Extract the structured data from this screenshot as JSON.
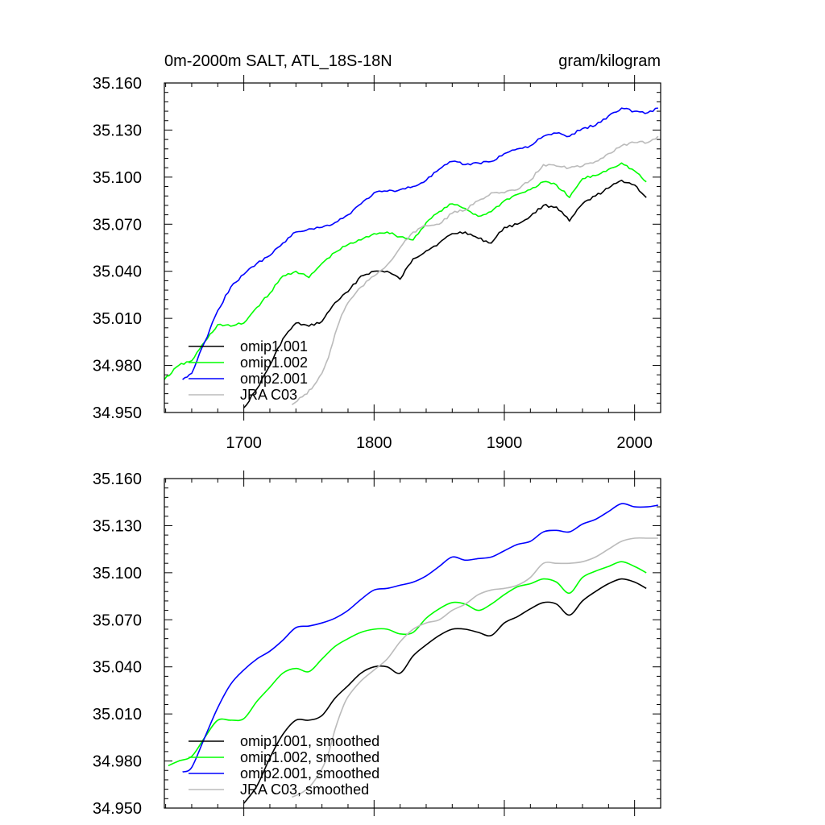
{
  "chart_data": [
    {
      "type": "line",
      "title_left": "0m-2000m SALT, ATL_18S-18N",
      "title_right": "gram/kilogram",
      "xlim": [
        1639,
        2020
      ],
      "ylim": [
        34.95,
        35.16
      ],
      "xticks": [
        1700,
        1800,
        1900,
        2000
      ],
      "xtick_labels": [
        "1700",
        "1800",
        "1900",
        "2000"
      ],
      "show_xtick_labels": true,
      "yticks": [
        34.95,
        34.98,
        35.01,
        35.04,
        35.07,
        35.1,
        35.13,
        35.16
      ],
      "ytick_labels": [
        "34.950",
        "34.980",
        "35.010",
        "35.040",
        "35.070",
        "35.100",
        "35.130",
        "35.160"
      ],
      "smooth": false,
      "series": [
        {
          "name": "omip1.001",
          "color": "#000000",
          "x": [
            1700,
            1710,
            1720,
            1730,
            1740,
            1750,
            1760,
            1770,
            1780,
            1790,
            1800,
            1810,
            1820,
            1830,
            1840,
            1850,
            1860,
            1870,
            1880,
            1890,
            1900,
            1910,
            1920,
            1930,
            1940,
            1950,
            1960,
            1970,
            1980,
            1990,
            2000,
            2009
          ],
          "y": [
            34.953,
            34.965,
            34.98,
            34.997,
            35.007,
            35.005,
            35.008,
            35.02,
            35.027,
            35.037,
            35.04,
            35.04,
            35.035,
            35.048,
            35.053,
            35.058,
            35.064,
            35.065,
            35.061,
            35.058,
            35.068,
            35.07,
            35.075,
            35.082,
            35.081,
            35.072,
            35.083,
            35.088,
            35.093,
            35.098,
            35.095,
            35.087
          ]
        },
        {
          "name": "omip1.002",
          "color": "#00ff00",
          "x": [
            1639,
            1650,
            1660,
            1670,
            1680,
            1690,
            1700,
            1710,
            1720,
            1730,
            1740,
            1750,
            1760,
            1770,
            1780,
            1790,
            1800,
            1810,
            1820,
            1830,
            1840,
            1850,
            1860,
            1870,
            1880,
            1890,
            1900,
            1910,
            1920,
            1930,
            1940,
            1950,
            1960,
            1970,
            1980,
            1990,
            2000,
            2009
          ],
          "y": [
            34.971,
            34.98,
            34.983,
            34.995,
            35.006,
            35.005,
            35.007,
            35.017,
            35.026,
            35.037,
            35.04,
            35.036,
            35.045,
            35.052,
            35.057,
            35.06,
            35.064,
            35.065,
            35.062,
            35.06,
            35.071,
            35.078,
            35.083,
            35.08,
            35.075,
            35.078,
            35.085,
            35.089,
            35.092,
            35.097,
            35.095,
            35.087,
            35.099,
            35.101,
            35.105,
            35.109,
            35.104,
            35.097
          ]
        },
        {
          "name": "omip2.001",
          "color": "#0000ff",
          "x": [
            1653,
            1660,
            1670,
            1680,
            1690,
            1700,
            1710,
            1720,
            1730,
            1740,
            1750,
            1760,
            1770,
            1780,
            1790,
            1800,
            1810,
            1820,
            1830,
            1840,
            1850,
            1860,
            1870,
            1880,
            1890,
            1900,
            1910,
            1920,
            1930,
            1940,
            1950,
            1960,
            1970,
            1980,
            1990,
            2000,
            2010,
            2018
          ],
          "y": [
            34.971,
            34.975,
            34.995,
            35.015,
            35.03,
            35.038,
            35.045,
            35.05,
            35.058,
            35.065,
            35.067,
            35.068,
            35.071,
            35.076,
            35.083,
            35.09,
            35.091,
            35.092,
            35.094,
            35.098,
            35.105,
            35.11,
            35.108,
            35.109,
            35.11,
            35.115,
            35.118,
            35.12,
            35.126,
            35.128,
            35.126,
            35.131,
            35.133,
            35.139,
            35.144,
            35.142,
            35.141,
            35.144
          ]
        },
        {
          "name": "JRA C03",
          "color": "#bbbbbb",
          "x": [
            1737,
            1745,
            1752,
            1760,
            1765,
            1770,
            1775,
            1780,
            1790,
            1800,
            1810,
            1820,
            1830,
            1840,
            1850,
            1860,
            1870,
            1880,
            1890,
            1900,
            1910,
            1920,
            1930,
            1940,
            1950,
            1960,
            1970,
            1980,
            1990,
            2000,
            2010,
            2018
          ],
          "y": [
            34.955,
            34.96,
            34.965,
            34.975,
            34.985,
            35.0,
            35.012,
            35.02,
            35.03,
            35.037,
            35.044,
            35.055,
            35.065,
            35.069,
            35.07,
            35.077,
            35.079,
            35.085,
            35.09,
            35.09,
            35.092,
            35.098,
            35.108,
            35.107,
            35.106,
            35.107,
            35.11,
            35.115,
            35.12,
            35.122,
            35.122,
            35.126
          ]
        }
      ],
      "legend": [
        "omip1.001",
        "omip1.002",
        "omip2.001",
        "JRA C03"
      ]
    },
    {
      "type": "line",
      "title_left": "",
      "title_right": "",
      "xlim": [
        1639,
        2020
      ],
      "ylim": [
        34.95,
        35.16
      ],
      "xticks": [
        1700,
        1800,
        1900,
        2000
      ],
      "xtick_labels": [],
      "show_xtick_labels": false,
      "yticks": [
        34.95,
        34.98,
        35.01,
        35.04,
        35.07,
        35.1,
        35.13,
        35.16
      ],
      "ytick_labels": [
        "34.950",
        "34.980",
        "35.010",
        "35.040",
        "35.070",
        "35.100",
        "35.130",
        "35.160"
      ],
      "smooth": true,
      "series": [
        {
          "name": "omip1.001, smoothed",
          "color": "#000000",
          "x": [
            1700,
            1710,
            1720,
            1730,
            1740,
            1750,
            1760,
            1770,
            1780,
            1790,
            1800,
            1810,
            1820,
            1830,
            1840,
            1850,
            1860,
            1870,
            1880,
            1890,
            1900,
            1910,
            1920,
            1930,
            1940,
            1950,
            1960,
            1970,
            1980,
            1990,
            2000,
            2009
          ],
          "y": [
            34.953,
            34.964,
            34.982,
            34.997,
            35.006,
            35.006,
            35.009,
            35.02,
            35.028,
            35.036,
            35.04,
            35.04,
            35.036,
            35.047,
            35.054,
            35.06,
            35.064,
            35.064,
            35.062,
            35.06,
            35.068,
            35.072,
            35.077,
            35.081,
            35.08,
            35.073,
            35.082,
            35.088,
            35.093,
            35.096,
            35.094,
            35.09
          ]
        },
        {
          "name": "omip1.002, smoothed",
          "color": "#00ff00",
          "x": [
            1642,
            1650,
            1660,
            1670,
            1680,
            1690,
            1700,
            1710,
            1720,
            1730,
            1740,
            1750,
            1760,
            1770,
            1780,
            1790,
            1800,
            1810,
            1820,
            1830,
            1840,
            1850,
            1860,
            1870,
            1880,
            1890,
            1900,
            1910,
            1920,
            1930,
            1940,
            1950,
            1960,
            1970,
            1980,
            1990,
            2000,
            2009
          ],
          "y": [
            34.977,
            34.98,
            34.983,
            34.995,
            35.006,
            35.006,
            35.007,
            35.018,
            35.027,
            35.036,
            35.039,
            35.037,
            35.045,
            35.053,
            35.058,
            35.062,
            35.064,
            35.064,
            35.061,
            35.062,
            35.071,
            35.077,
            35.081,
            35.08,
            35.076,
            35.08,
            35.086,
            35.091,
            35.093,
            35.096,
            35.094,
            35.087,
            35.097,
            35.101,
            35.104,
            35.107,
            35.104,
            35.1
          ]
        },
        {
          "name": "omip2.001, smoothed",
          "color": "#0000ff",
          "x": [
            1653,
            1660,
            1670,
            1680,
            1690,
            1700,
            1710,
            1720,
            1730,
            1740,
            1750,
            1760,
            1770,
            1780,
            1790,
            1800,
            1810,
            1820,
            1830,
            1840,
            1850,
            1860,
            1870,
            1880,
            1890,
            1900,
            1910,
            1920,
            1930,
            1940,
            1950,
            1960,
            1970,
            1980,
            1990,
            2000,
            2010,
            2018
          ],
          "y": [
            34.973,
            34.976,
            34.995,
            35.014,
            35.029,
            35.038,
            35.045,
            35.05,
            35.057,
            35.065,
            35.066,
            35.068,
            35.071,
            35.076,
            35.083,
            35.089,
            35.09,
            35.092,
            35.094,
            35.098,
            35.104,
            35.11,
            35.108,
            35.109,
            35.11,
            35.114,
            35.118,
            35.12,
            35.126,
            35.127,
            35.126,
            35.131,
            35.134,
            35.139,
            35.144,
            35.142,
            35.142,
            35.143
          ]
        },
        {
          "name": "JRA C03, smoothed",
          "color": "#bbbbbb",
          "x": [
            1737,
            1745,
            1752,
            1760,
            1765,
            1770,
            1775,
            1780,
            1790,
            1800,
            1810,
            1820,
            1830,
            1840,
            1850,
            1860,
            1870,
            1880,
            1890,
            1900,
            1910,
            1920,
            1930,
            1940,
            1950,
            1960,
            1970,
            1980,
            1990,
            2000,
            2010,
            2018
          ],
          "y": [
            34.957,
            34.96,
            34.965,
            34.975,
            34.985,
            35.0,
            35.012,
            35.021,
            35.031,
            35.038,
            35.045,
            35.056,
            35.064,
            35.068,
            35.07,
            35.076,
            35.08,
            35.086,
            35.089,
            35.09,
            35.092,
            35.097,
            35.106,
            35.106,
            35.106,
            35.107,
            35.11,
            35.115,
            35.12,
            35.122,
            35.122,
            35.122
          ]
        }
      ],
      "legend": [
        "omip1.001, smoothed",
        "omip1.002, smoothed",
        "omip2.001, smoothed",
        "JRA C03, smoothed"
      ]
    }
  ]
}
